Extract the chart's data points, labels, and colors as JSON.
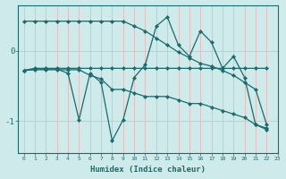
{
  "xlabel": "Humidex (Indice chaleur)",
  "bg_color": "#ceeaea",
  "line_color": "#1a6b6b",
  "grid_color": "#e8b8b8",
  "xlim": [
    -0.5,
    23
  ],
  "ylim": [
    -1.45,
    0.65
  ],
  "yticks": [
    0,
    -1
  ],
  "xticks": [
    0,
    1,
    2,
    3,
    4,
    5,
    6,
    7,
    8,
    9,
    10,
    11,
    12,
    13,
    14,
    15,
    16,
    17,
    18,
    19,
    20,
    21,
    22,
    23
  ],
  "lines": [
    {
      "x": [
        0,
        1,
        2,
        3,
        4,
        5,
        6,
        7,
        8,
        9,
        10,
        11,
        12,
        13,
        14,
        15,
        16,
        17,
        18,
        19,
        20,
        21,
        22
      ],
      "y": [
        -0.28,
        -0.25,
        -0.25,
        -0.25,
        -0.25,
        -0.25,
        -0.25,
        -0.25,
        -0.25,
        -0.25,
        -0.25,
        -0.25,
        -0.25,
        -0.25,
        -0.25,
        -0.25,
        -0.25,
        -0.25,
        -0.25,
        -0.25,
        -0.25,
        -0.25,
        -0.25
      ]
    },
    {
      "x": [
        0,
        1,
        2,
        3,
        4,
        5,
        6,
        7,
        8,
        9,
        10,
        11,
        12,
        13,
        14,
        15,
        16,
        17,
        18,
        19,
        20,
        21,
        22
      ],
      "y": [
        -0.28,
        -0.27,
        -0.27,
        -0.27,
        -0.27,
        -0.27,
        -0.35,
        -0.4,
        -0.55,
        -0.55,
        -0.6,
        -0.65,
        -0.65,
        -0.65,
        -0.7,
        -0.75,
        -0.75,
        -0.8,
        -0.85,
        -0.9,
        -0.95,
        -1.05,
        -1.1
      ]
    },
    {
      "x": [
        0,
        1,
        2,
        3,
        4,
        5,
        6,
        7,
        8,
        9,
        10,
        11,
        12,
        13,
        14,
        15,
        16,
        17,
        18,
        19,
        20,
        21,
        22
      ],
      "y": [
        0.42,
        0.42,
        0.42,
        0.42,
        0.42,
        0.42,
        0.42,
        0.42,
        0.42,
        0.42,
        0.35,
        0.28,
        0.18,
        0.08,
        -0.02,
        -0.1,
        -0.18,
        -0.22,
        -0.28,
        -0.35,
        -0.45,
        -0.55,
        -1.05
      ]
    },
    {
      "x": [
        0,
        1,
        2,
        3,
        4,
        5,
        6,
        7,
        8,
        9,
        10,
        11,
        12,
        13,
        14,
        15,
        16,
        17,
        18,
        19,
        20,
        21,
        22
      ],
      "y": [
        -0.28,
        -0.26,
        -0.26,
        -0.26,
        -0.32,
        -0.98,
        -0.32,
        -0.45,
        -1.28,
        -0.98,
        -0.38,
        -0.2,
        0.35,
        0.48,
        0.08,
        -0.08,
        0.28,
        0.12,
        -0.25,
        -0.08,
        -0.38,
        -1.05,
        -1.12
      ]
    }
  ]
}
